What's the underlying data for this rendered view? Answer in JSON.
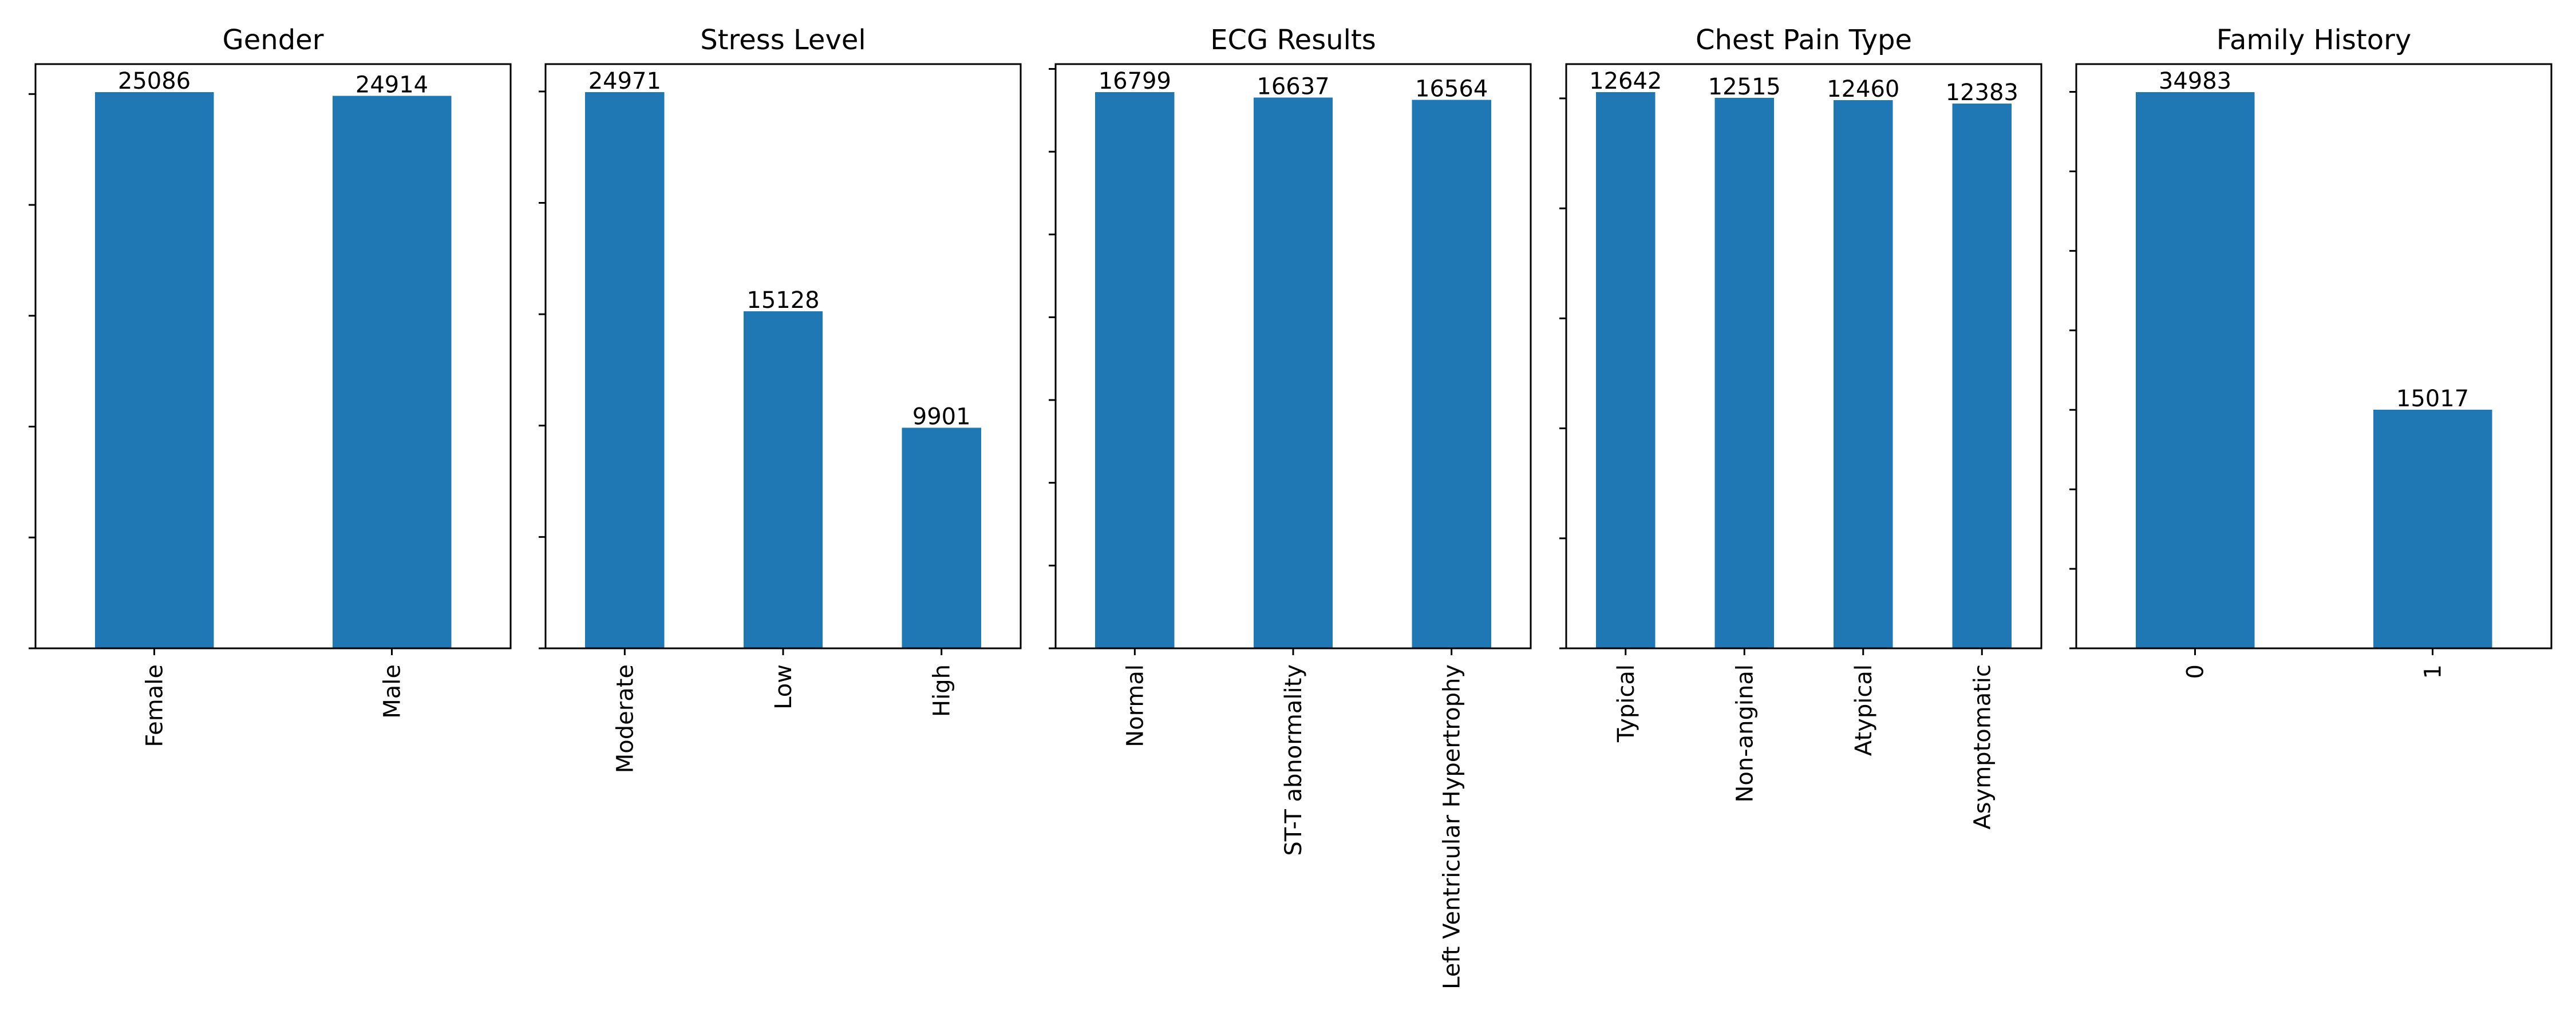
{
  "bar_color": "#1f77b4",
  "chart_data": [
    {
      "type": "bar",
      "title": "Gender",
      "categories": [
        "Female",
        "Male"
      ],
      "values": [
        25086,
        24914
      ],
      "grid": false,
      "show_yticklabels": false
    },
    {
      "type": "bar",
      "title": "Stress Level",
      "categories": [
        "Moderate",
        "Low",
        "High"
      ],
      "values": [
        24971,
        15128,
        9901
      ],
      "grid": false,
      "show_yticklabels": false
    },
    {
      "type": "bar",
      "title": "ECG Results",
      "categories": [
        "Normal",
        "ST-T abnormality",
        "Left Ventricular Hypertrophy"
      ],
      "values": [
        16799,
        16637,
        16564
      ],
      "grid": false,
      "show_yticklabels": false
    },
    {
      "type": "bar",
      "title": "Chest Pain Type",
      "categories": [
        "Typical",
        "Non-anginal",
        "Atypical",
        "Asymptomatic"
      ],
      "values": [
        12642,
        12515,
        12460,
        12383
      ],
      "grid": false,
      "show_yticklabels": false
    },
    {
      "type": "bar",
      "title": "Family History",
      "categories": [
        "0",
        "1"
      ],
      "values": [
        34983,
        15017
      ],
      "grid": false,
      "show_yticklabels": false
    }
  ]
}
